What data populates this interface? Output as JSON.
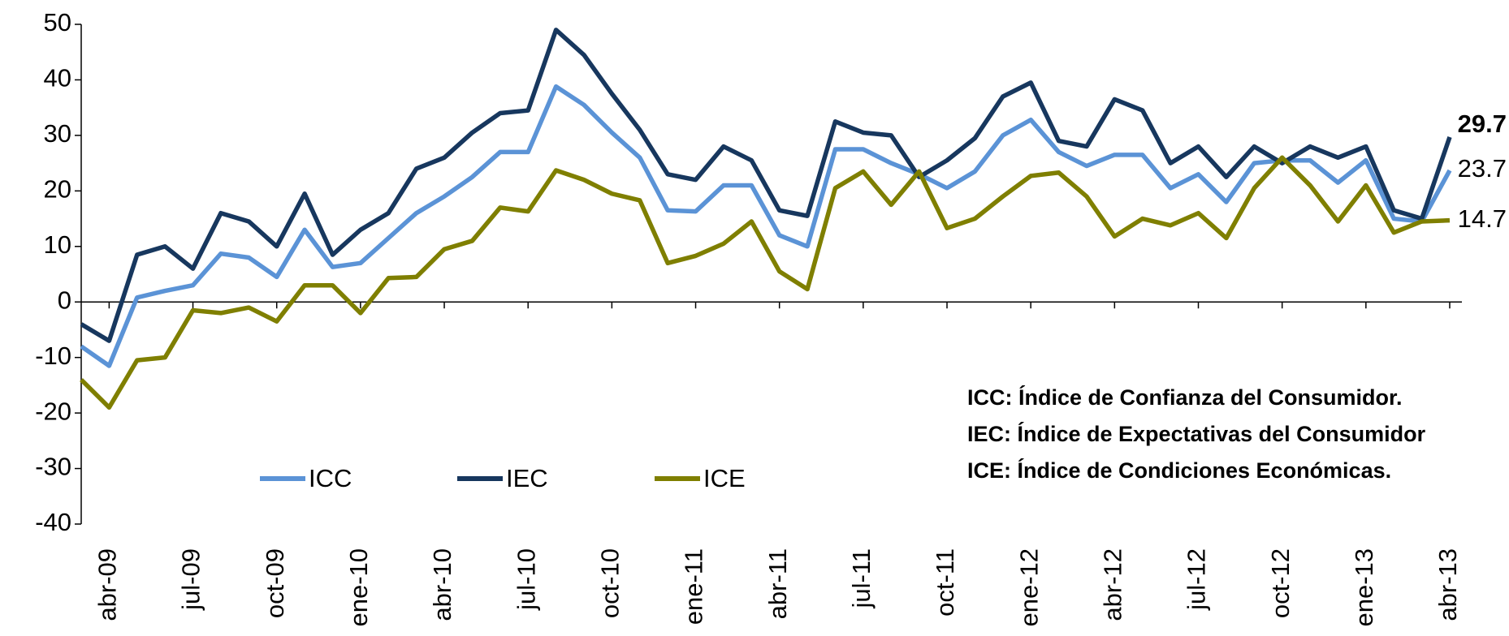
{
  "chart_data": {
    "type": "line",
    "categories": [
      null,
      "abr-09",
      null,
      null,
      "jul-09",
      null,
      null,
      "oct-09",
      null,
      null,
      "ene-10",
      null,
      null,
      "abr-10",
      null,
      null,
      "jul-10",
      null,
      null,
      "oct-10",
      null,
      null,
      "ene-11",
      null,
      null,
      "abr-11",
      null,
      null,
      "jul-11",
      null,
      null,
      "oct-11",
      null,
      null,
      "ene-12",
      null,
      null,
      "abr-12",
      null,
      null,
      "jul-12",
      null,
      null,
      "oct-12",
      null,
      null,
      "ene-13",
      null,
      null,
      "abr-13"
    ],
    "series": [
      {
        "name": "ICC",
        "color": "#5b93d6",
        "values": [
          -8,
          -11.5,
          0.8,
          2,
          3,
          8.7,
          8,
          4.5,
          13,
          6.3,
          7,
          11.5,
          16,
          19,
          22.5,
          27,
          27,
          38.8,
          35.5,
          30.5,
          26,
          16.5,
          16.3,
          21,
          21,
          12,
          10,
          27.5,
          27.5,
          25,
          23,
          20.5,
          23.5,
          30,
          32.8,
          27,
          24.5,
          26.5,
          26.5,
          20.5,
          23,
          18,
          25,
          25.5,
          25.5,
          21.5,
          25.5,
          15,
          14.5,
          23.7
        ]
      },
      {
        "name": "IEC",
        "color": "#17375e",
        "values": [
          -4,
          -7,
          8.5,
          10,
          6,
          16,
          14.5,
          10,
          19.5,
          8.5,
          13,
          16,
          24,
          26,
          30.5,
          34,
          34.5,
          49,
          44.5,
          37.5,
          31,
          23,
          22,
          28,
          25.5,
          16.5,
          15.5,
          32.5,
          30.5,
          30,
          22.5,
          25.5,
          29.5,
          37,
          39.5,
          29,
          28,
          36.5,
          34.5,
          25,
          28,
          22.5,
          28,
          25,
          28,
          26,
          28,
          16.5,
          15,
          29.7
        ]
      },
      {
        "name": "ICE",
        "color": "#7f7f00",
        "values": [
          -14,
          -19,
          -10.5,
          -10,
          -1.5,
          -2,
          -1,
          -3.5,
          3,
          3,
          -2,
          4.3,
          4.5,
          9.5,
          11,
          17,
          16.3,
          23.7,
          22,
          19.5,
          18.3,
          7,
          8.3,
          10.5,
          14.5,
          5.5,
          2.3,
          20.5,
          23.5,
          17.5,
          23.5,
          13.3,
          15,
          19,
          22.7,
          23.3,
          19,
          11.8,
          15,
          13.8,
          16,
          11.5,
          20.5,
          26,
          21,
          14.5,
          21,
          12.5,
          14.5,
          14.7
        ]
      }
    ],
    "label_last": true,
    "ylim": [
      -40,
      50
    ],
    "yticks": [
      -40,
      -30,
      -20,
      -10,
      0,
      10,
      20,
      30,
      40,
      50
    ],
    "annotations": [
      "ICC: Índice de Confianza del Consumidor.",
      "IEC: Índice de Expectativas del Consumidor",
      "ICE: Índice de Condiciones Económicas."
    ]
  }
}
